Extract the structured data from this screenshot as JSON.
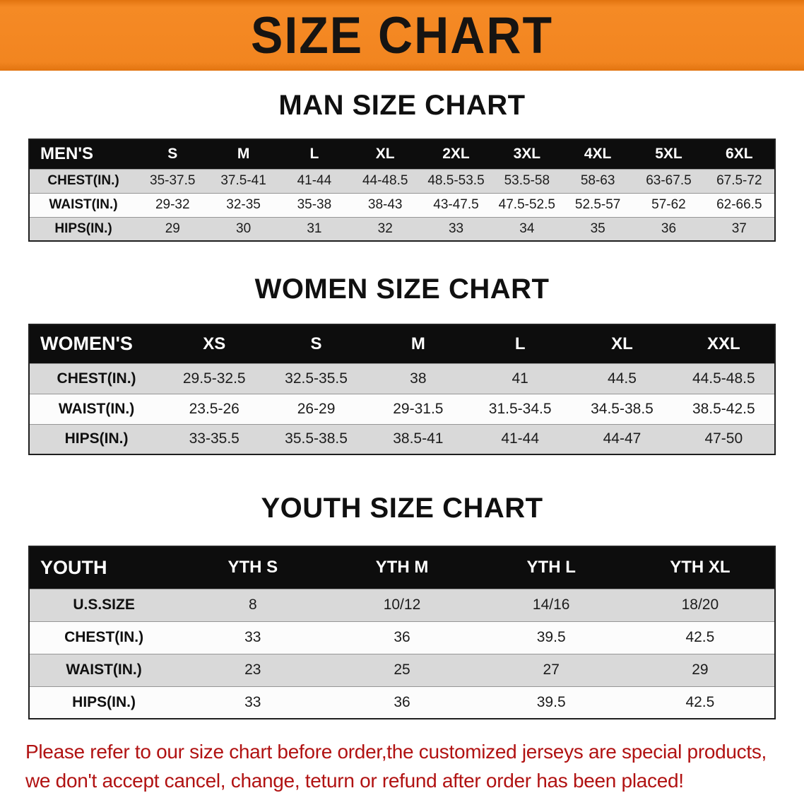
{
  "banner": {
    "title": "SIZE CHART",
    "background_color": "#f28520",
    "text_color": "#161412"
  },
  "sections": [
    {
      "heading": "MAN SIZE CHART",
      "table": {
        "header": [
          "MEN'S",
          "S",
          "M",
          "L",
          "XL",
          "2XL",
          "3XL",
          "4XL",
          "5XL",
          "6XL"
        ],
        "rows": [
          [
            "CHEST(IN.)",
            "35-37.5",
            "37.5-41",
            "41-44",
            "44-48.5",
            "48.5-53.5",
            "53.5-58",
            "58-63",
            "63-67.5",
            "67.5-72"
          ],
          [
            "WAIST(IN.)",
            "29-32",
            "32-35",
            "35-38",
            "38-43",
            "43-47.5",
            "47.5-52.5",
            "52.5-57",
            "57-62",
            "62-66.5"
          ],
          [
            "HIPS(IN.)",
            "29",
            "30",
            "31",
            "32",
            "33",
            "34",
            "35",
            "36",
            "37"
          ]
        ]
      }
    },
    {
      "heading": "WOMEN SIZE CHART",
      "table": {
        "header": [
          "WOMEN'S",
          "XS",
          "S",
          "M",
          "L",
          "XL",
          "XXL"
        ],
        "rows": [
          [
            "CHEST(IN.)",
            "29.5-32.5",
            "32.5-35.5",
            "38",
            "41",
            "44.5",
            "44.5-48.5"
          ],
          [
            "WAIST(IN.)",
            "23.5-26",
            "26-29",
            "29-31.5",
            "31.5-34.5",
            "34.5-38.5",
            "38.5-42.5"
          ],
          [
            "HIPS(IN.)",
            "33-35.5",
            "35.5-38.5",
            "38.5-41",
            "41-44",
            "44-47",
            "47-50"
          ]
        ]
      }
    },
    {
      "heading": "YOUTH SIZE CHART",
      "table": {
        "header": [
          "YOUTH",
          "YTH S",
          "YTH M",
          "YTH L",
          "YTH XL"
        ],
        "rows": [
          [
            "U.S.SIZE",
            "8",
            "10/12",
            "14/16",
            "18/20"
          ],
          [
            "CHEST(IN.)",
            "33",
            "36",
            "39.5",
            "42.5"
          ],
          [
            "WAIST(IN.)",
            "23",
            "25",
            "27",
            "29"
          ],
          [
            "HIPS(IN.)",
            "33",
            "36",
            "39.5",
            "42.5"
          ]
        ]
      }
    }
  ],
  "disclaimer": {
    "line1": "Please refer to our size chart before order,the customized jerseys are special products,",
    "line2": "we don't accept cancel, change, teturn or refund after order has been placed!",
    "color": "#b11212"
  }
}
